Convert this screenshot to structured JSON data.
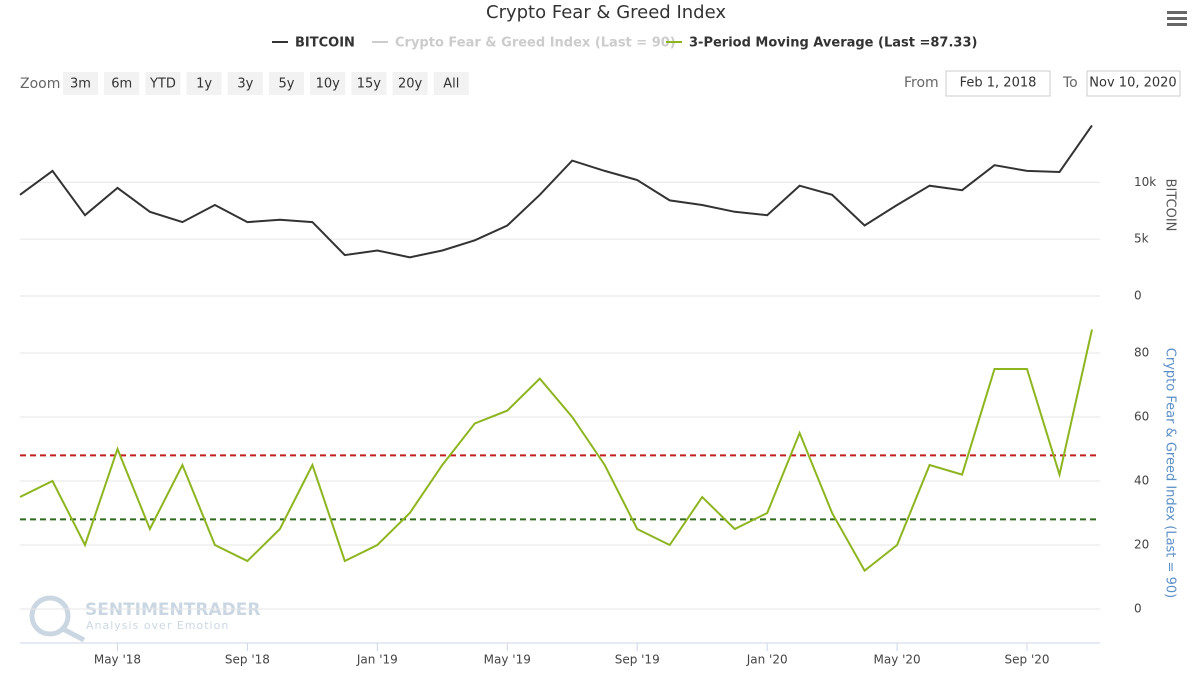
{
  "chart_data": {
    "type": "line",
    "title": "Crypto Fear & Greed Index",
    "x": [
      "2018-02",
      "2018-03",
      "2018-04",
      "2018-05",
      "2018-06",
      "2018-07",
      "2018-08",
      "2018-09",
      "2018-10",
      "2018-11",
      "2018-12",
      "2019-01",
      "2019-02",
      "2019-03",
      "2019-04",
      "2019-05",
      "2019-06",
      "2019-07",
      "2019-08",
      "2019-09",
      "2019-10",
      "2019-11",
      "2019-12",
      "2020-01",
      "2020-02",
      "2020-03",
      "2020-04",
      "2020-05",
      "2020-06",
      "2020-07",
      "2020-08",
      "2020-09",
      "2020-10",
      "2020-11"
    ],
    "xlim": [
      "2018-02",
      "2020-11"
    ],
    "xticks": [
      {
        "value": "2018-05",
        "label": "May '18"
      },
      {
        "value": "2018-09",
        "label": "Sep '18"
      },
      {
        "value": "2019-01",
        "label": "Jan '19"
      },
      {
        "value": "2019-05",
        "label": "May '19"
      },
      {
        "value": "2019-09",
        "label": "Sep '19"
      },
      {
        "value": "2020-01",
        "label": "Jan '20"
      },
      {
        "value": "2020-05",
        "label": "May '20"
      },
      {
        "value": "2020-09",
        "label": "Sep '20"
      }
    ],
    "grid": true,
    "panels": [
      {
        "ylabel": "BITCOIN",
        "ylim": [
          0,
          16000
        ],
        "yticks": [
          0,
          {
            "value": 5000,
            "label": "5k"
          },
          {
            "value": 10000,
            "label": "10k"
          }
        ],
        "series": [
          {
            "name": "BITCOIN",
            "color": "#333333",
            "values": [
              8900,
              11000,
              7100,
              9500,
              7400,
              6500,
              8000,
              6500,
              6700,
              6500,
              3600,
              4000,
              3400,
              4000,
              4900,
              6200,
              8900,
              11900,
              11000,
              10200,
              8400,
              8000,
              7400,
              7100,
              9700,
              8900,
              6200,
              8000,
              9700,
              9300,
              11500,
              11000,
              10900,
              15000
            ]
          }
        ]
      },
      {
        "ylabel": "Crypto Fear & Greed Index (Last = 90)",
        "ylim": [
          -10,
          95
        ],
        "yticks": [
          0,
          20,
          40,
          60,
          80
        ],
        "reference_lines": [
          {
            "value": 48,
            "color": "#c0201e"
          },
          {
            "value": 28,
            "color": "#2e6b1f"
          }
        ],
        "series": [
          {
            "name": "Crypto Fear & Greed Index (Last = 90)",
            "color": "#cccccc",
            "visible": false
          },
          {
            "name": "3-Period Moving Average (Last =87.33)",
            "color": "#8db520",
            "values": [
              35,
              40,
              20,
              50,
              25,
              45,
              20,
              15,
              25,
              45,
              15,
              20,
              30,
              45,
              58,
              62,
              72,
              60,
              45,
              25,
              20,
              35,
              25,
              30,
              55,
              30,
              12,
              20,
              45,
              42,
              75,
              75,
              42,
              87.33
            ]
          }
        ]
      }
    ]
  },
  "zoom": {
    "label": "Zoom",
    "buttons": [
      "3m",
      "6m",
      "YTD",
      "1y",
      "3y",
      "5y",
      "10y",
      "15y",
      "20y",
      "All"
    ]
  },
  "range": {
    "from_label": "From",
    "from": "Feb 1, 2018",
    "to_label": "To",
    "to": "Nov 10, 2020"
  },
  "watermark": {
    "name": "SENTIMENTRADER",
    "tagline": "Analysis over Emotion"
  }
}
